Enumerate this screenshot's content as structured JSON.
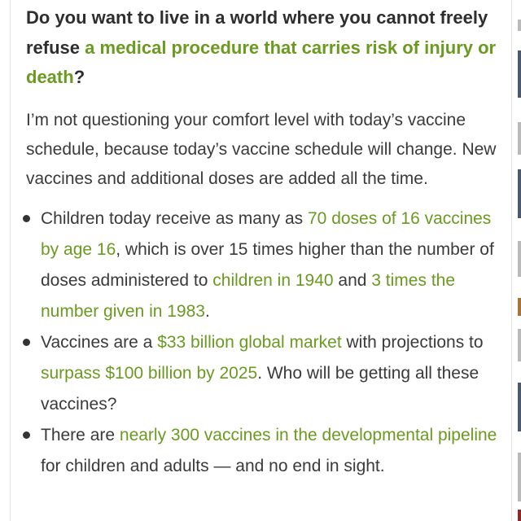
{
  "article": {
    "headline": {
      "pre": "Do you want to live in a world where you cannot freely refuse ",
      "link": "a medical procedure that carries risk of injury or death",
      "post": "?"
    },
    "intro": "I’m not questioning your comfort level with today’s vaccine schedule, because today’s vaccine schedule will change. New vaccines and additional doses are added all the time.",
    "bullets": [
      {
        "t1": "Children today receive as many as ",
        "l1": "70 doses of 16 vaccines by age 16",
        "t2": ", which is over 15 times higher than the number of doses administered to ",
        "l2": "children in 1940",
        "t3": " and ",
        "l3": "3 times the number given in 1983",
        "t4": "."
      },
      {
        "t1": "Vaccines are a ",
        "l1": "$33 billion global market",
        "t2": " with projections to ",
        "l2": "surpass $100 billion by 2025",
        "t3": ". Who will be getting all these vaccines?"
      },
      {
        "t1": "There are ",
        "l1": "nearly 300 vaccines in the developmental pipeline",
        "t2": " for children and adults — and no end in sight."
      }
    ]
  },
  "colors": {
    "link": "#6a9a1f",
    "text": "#3a3a3a",
    "background": "#ffffff"
  }
}
